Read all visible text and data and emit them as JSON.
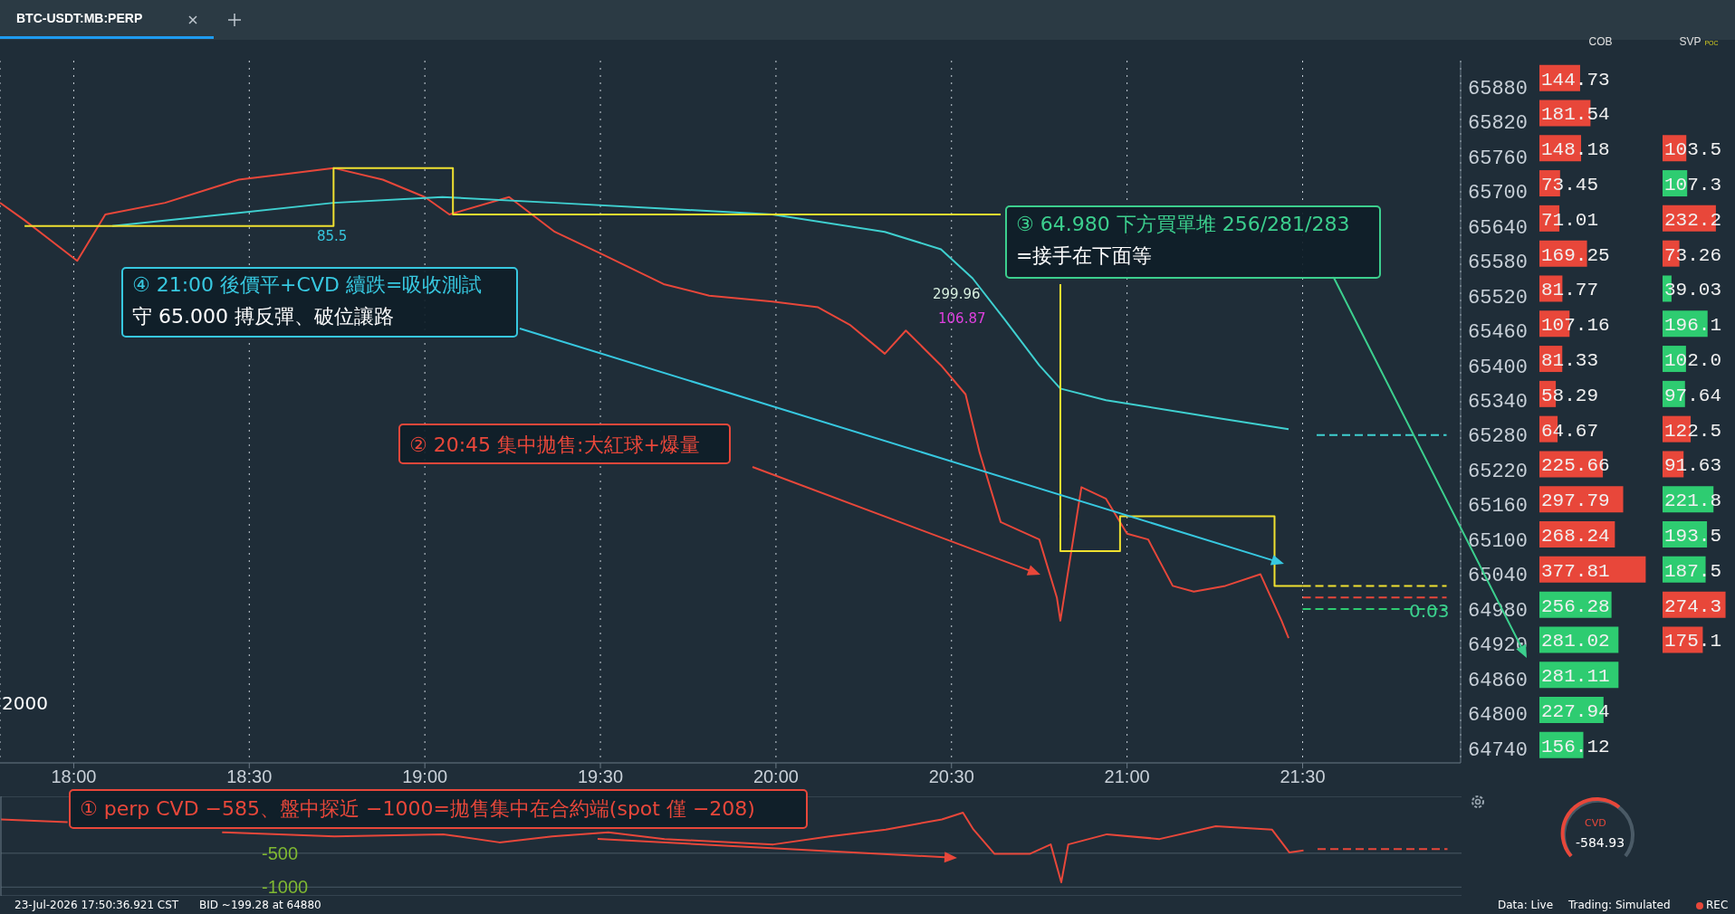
{
  "chart_data": [
    {
      "type": "line",
      "title": "BTC-USDT:MB:PERP",
      "x": [
        17.79,
        17.86,
        18.01,
        18.09,
        18.26,
        18.47,
        18.61,
        18.74,
        18.88,
        19.0,
        19.07,
        19.24,
        19.37,
        19.51,
        19.68,
        19.81,
        19.99,
        20.12,
        20.21,
        20.31,
        20.37,
        20.47,
        20.54,
        20.58,
        20.64,
        20.75,
        20.8,
        20.81,
        20.87,
        20.94,
        21.0,
        21.06,
        21.13,
        21.19,
        21.28,
        21.38,
        21.44,
        21.46
      ],
      "series": [
        {
          "color": "#e8473a",
          "values": [
            65680,
            65650,
            65580,
            65660,
            65680,
            65720,
            65730,
            65740,
            65720,
            65690,
            65660,
            65690,
            65630,
            65590,
            65540,
            65520,
            65510,
            65500,
            65470,
            65420,
            65460,
            65400,
            65350,
            65250,
            65130,
            65100,
            65000,
            64960,
            65190,
            65170,
            65110,
            65100,
            65020,
            65010,
            65020,
            65040,
            64960,
            64930
          ]
        },
        {
          "color": "#3fd0d0",
          "x": [
            18.11,
            18.74,
            19.05,
            19.37,
            19.68,
            19.99,
            20.31,
            20.47,
            20.56,
            20.65,
            20.75,
            20.81,
            20.94,
            21.25,
            21.46
          ],
          "values": [
            65640,
            65680,
            65690,
            65680,
            65670,
            65660,
            65630,
            65600,
            65550,
            65480,
            65400,
            65360,
            65340,
            65310,
            65290
          ]
        },
        {
          "color": "#3fd0d0",
          "line_style": "dashed",
          "x": [
            21.54,
            21.91
          ],
          "values": [
            65280,
            65280
          ]
        },
        {
          "color": "#f0e130",
          "x": [
            17.86,
            18.74,
            18.74,
            19.08,
            19.08,
            20.64,
            20.7,
            20.81,
            20.81,
            20.98,
            20.98,
            21.42,
            21.42,
            21.5
          ],
          "values": [
            65640,
            65640,
            65740,
            65740,
            65660,
            65660,
            null,
            65540,
            65080,
            65080,
            65140,
            65140,
            65020,
            65020
          ]
        },
        {
          "color": "#f0e130",
          "line_style": "dashed",
          "x": [
            21.5,
            21.91
          ],
          "values": [
            65020,
            65020
          ]
        },
        {
          "color": "#e8473a",
          "line_style": "dashed",
          "x": [
            21.5,
            21.91
          ],
          "values": [
            65000,
            65000
          ]
        },
        {
          "color": "#2ecc71",
          "line_style": "dashed",
          "x": [
            21.5,
            21.91
          ],
          "values": [
            64980,
            64980
          ]
        }
      ],
      "xlim": [
        17.79,
        21.95
      ],
      "xticks": [
        {
          "value": 18,
          "label": "18:00"
        },
        {
          "value": 18.5,
          "label": "18:30"
        },
        {
          "value": 19,
          "label": "19:00"
        },
        {
          "value": 19.5,
          "label": "19:30"
        },
        {
          "value": 20,
          "label": "20:00"
        },
        {
          "value": 20.5,
          "label": "20:30"
        },
        {
          "value": 21,
          "label": "21:00"
        },
        {
          "value": 21.5,
          "label": "21:30"
        }
      ],
      "ylim": [
        64715,
        65925
      ],
      "yticks": [
        64740,
        64800,
        64860,
        64920,
        64980,
        65040,
        65100,
        65160,
        65220,
        65280,
        65340,
        65400,
        65460,
        65520,
        65580,
        65640,
        65700,
        65760,
        65820,
        65880
      ],
      "grid": "x",
      "annotations": [
        "④ 21:00 後價平+CVD 續跌=吸收測試",
        "守 65.000 搏反彈、破位讓路",
        "③ 64.980 下方買單堆 256/281/283",
        "=接手在下面等",
        "② 20:45 集中拋售:大紅球+爆量",
        "85.5",
        "299.96",
        "106.87",
        "2000",
        "0.03",
        "23-Jul-2026 17:50:36.921 CST",
        "BID ~199.28 at 64880",
        "Data: Live",
        "Trading: Simulated",
        "REC"
      ]
    },
    {
      "type": "bar",
      "orientation": "horizontal",
      "title": "COB",
      "tick_labels": false,
      "data_labels": true,
      "categories": [
        "65880",
        "65820",
        "65760",
        "65700",
        "65640",
        "65580",
        "65520",
        "65460",
        "65400",
        "65340",
        "65280",
        "65220",
        "65160",
        "65100",
        "65040",
        "64980",
        "64920",
        "64860",
        "64800",
        "64740"
      ],
      "values": [
        144.73,
        181.54,
        148.18,
        73.45,
        71.01,
        169.25,
        81.77,
        107.16,
        81.33,
        58.29,
        64.67,
        225.66,
        297.79,
        268.24,
        377.81,
        256.28,
        281.02,
        281.11,
        227.94,
        156.12
      ],
      "colors": [
        "#e8473a",
        "#e8473a",
        "#e8473a",
        "#e8473a",
        "#e8473a",
        "#e8473a",
        "#e8473a",
        "#e8473a",
        "#e8473a",
        "#e8473a",
        "#e8473a",
        "#e8473a",
        "#e8473a",
        "#e8473a",
        "#e8473a",
        "#2ecc71",
        "#2ecc71",
        "#2ecc71",
        "#2ecc71",
        "#2ecc71"
      ]
    },
    {
      "type": "bar",
      "orientation": "horizontal",
      "title": "SVP",
      "subtitle": "POC",
      "tick_labels": false,
      "categories": [
        "65880",
        "65820",
        "65760",
        "65700",
        "65640",
        "65580",
        "65520",
        "65460",
        "65400",
        "65340",
        "65280",
        "65220",
        "65160",
        "65100",
        "65040",
        "64980",
        "64920",
        "64860",
        "64800",
        "64740"
      ],
      "values": [
        null,
        null,
        103.5,
        107.3,
        232.2,
        73.26,
        39.03,
        196.1,
        102.0,
        97.64,
        122.5,
        91.63,
        221.8,
        193.5,
        187.5,
        274.3,
        175.1,
        null,
        null,
        null
      ],
      "value_labels": [
        null,
        null,
        "103.5",
        "107.3",
        "232.2",
        "73.26",
        "39.03",
        "196.1",
        "102.0",
        "97.64",
        "122.5",
        "91.63",
        "221.8",
        "193.5",
        "187.5",
        "274.3",
        "175.1",
        null,
        null,
        null
      ],
      "colors": [
        "#e8473a",
        "#e8473a",
        "#e8473a",
        "#2ecc71",
        "#e8473a",
        "#e8473a",
        "#2ecc71",
        "#2ecc71",
        "#2ecc71",
        "#2ecc71",
        "#e8473a",
        "#e8473a",
        "#2ecc71",
        "#2ecc71",
        "#2ecc71",
        "#e8473a",
        "#e8473a",
        "#e8473a",
        "#e8473a",
        "#e8473a"
      ]
    },
    {
      "type": "line",
      "tick_labels": "y",
      "grid": "y",
      "x": [
        17.79,
        17.98,
        18.11,
        18.42,
        18.74,
        19.05,
        19.21,
        19.36,
        19.52,
        19.68,
        19.99,
        20.15,
        20.31,
        20.47,
        20.53,
        20.56,
        20.62,
        20.72,
        20.78,
        20.81,
        20.83,
        20.94,
        21.09,
        21.25,
        21.41,
        21.46,
        21.5
      ],
      "series": [
        {
          "color": "#e8473a",
          "values": [
            0,
            -40,
            null,
            -190,
            -250,
            -220,
            -340,
            -250,
            -190,
            -290,
            -370,
            -250,
            -150,
            0,
            100,
            -150,
            -510,
            -510,
            -370,
            -930,
            -370,
            -220,
            -290,
            -100,
            -150,
            -490,
            -460
          ]
        },
        {
          "color": "#e8473a",
          "line_style": "dashed",
          "x": [
            21.54,
            21.91
          ],
          "values": [
            -440,
            -440
          ]
        }
      ],
      "xlim": [
        17.79,
        21.95
      ],
      "ylim": [
        -1130,
        340
      ],
      "yticks": [
        -500,
        -1000
      ],
      "annotations": [
        "① perp CVD −585、盤中探近 −1000=拋售集中在合約端(spot 僅 −208)",
        "CVD",
        "-584.93"
      ]
    }
  ]
}
